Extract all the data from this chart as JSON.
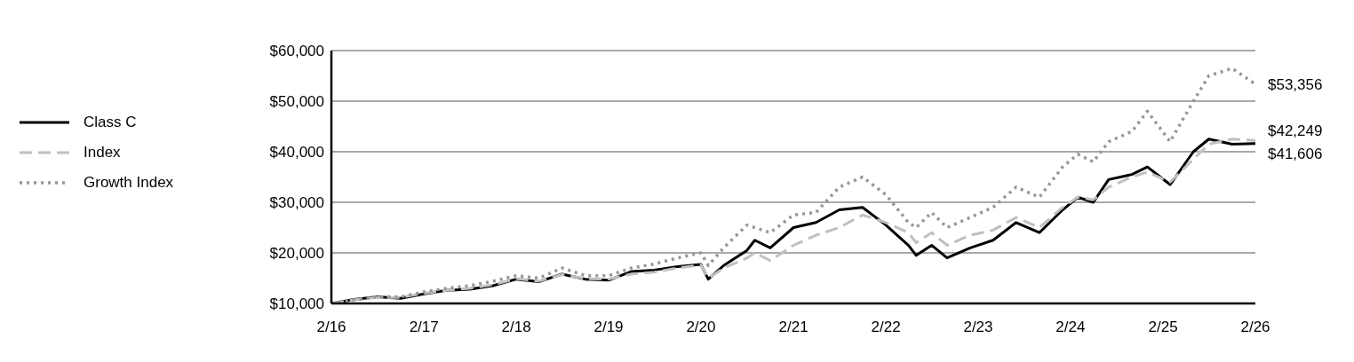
{
  "chart_data": {
    "type": "line",
    "x": [
      "2016-02",
      "2016-05",
      "2016-08",
      "2016-11",
      "2017-02",
      "2017-05",
      "2017-08",
      "2017-11",
      "2018-02",
      "2018-05",
      "2018-08",
      "2018-11",
      "2019-02",
      "2019-05",
      "2019-08",
      "2019-11",
      "2020-02",
      "2020-03",
      "2020-05",
      "2020-08",
      "2020-09",
      "2020-11",
      "2021-02",
      "2021-05",
      "2021-08",
      "2021-11",
      "2022-02",
      "2022-05",
      "2022-06",
      "2022-08",
      "2022-10",
      "2023-01",
      "2023-04",
      "2023-07",
      "2023-10",
      "2024-01",
      "2024-03",
      "2024-05",
      "2024-07",
      "2024-10",
      "2024-12",
      "2025-03",
      "2025-06",
      "2025-08",
      "2025-11",
      "2026-02"
    ],
    "series": [
      {
        "name": "Class C",
        "color": "#000000",
        "line_style": "solid",
        "values": [
          10000,
          10800,
          11300,
          11000,
          11900,
          12600,
          12800,
          13500,
          14800,
          14300,
          15800,
          14800,
          14600,
          16300,
          16600,
          17300,
          17700,
          14800,
          17500,
          20500,
          22500,
          21000,
          25000,
          26000,
          28500,
          29000,
          25500,
          21500,
          19500,
          21500,
          19000,
          21000,
          22500,
          26000,
          24000,
          28500,
          31000,
          30000,
          34500,
          35500,
          37000,
          33500,
          40000,
          42500,
          41500,
          41606
        ],
        "value_labels": [
          null,
          null,
          null,
          null,
          null,
          null,
          null,
          null,
          null,
          null,
          null,
          null,
          null,
          null,
          null,
          null,
          null,
          null,
          null,
          null,
          null,
          null,
          null,
          null,
          null,
          null,
          null,
          null,
          null,
          null,
          null,
          null,
          null,
          null,
          null,
          null,
          null,
          null,
          null,
          null,
          null,
          null,
          null,
          null,
          null,
          "$41,606"
        ]
      },
      {
        "name": "Index",
        "color": "#c0c0c0",
        "line_style": "dashed",
        "values": [
          10000,
          10700,
          11200,
          11200,
          12000,
          12600,
          13000,
          13700,
          14900,
          14400,
          15700,
          14900,
          14800,
          15800,
          16200,
          17000,
          17600,
          15000,
          17000,
          19000,
          20000,
          18500,
          21500,
          23500,
          25000,
          27500,
          26000,
          24000,
          22000,
          24000,
          21500,
          23500,
          24500,
          27000,
          25000,
          29000,
          31000,
          30500,
          33000,
          35000,
          36000,
          34000,
          38500,
          41500,
          42500,
          42249
        ],
        "value_labels": [
          null,
          null,
          null,
          null,
          null,
          null,
          null,
          null,
          null,
          null,
          null,
          null,
          null,
          null,
          null,
          null,
          null,
          null,
          null,
          null,
          null,
          null,
          null,
          null,
          null,
          null,
          null,
          null,
          null,
          null,
          null,
          null,
          null,
          null,
          null,
          null,
          null,
          null,
          null,
          null,
          null,
          null,
          null,
          null,
          null,
          "$42,249"
        ]
      },
      {
        "name": "Growth Index",
        "color": "#969696",
        "line_style": "dotted",
        "values": [
          10000,
          10700,
          11300,
          11300,
          12300,
          13000,
          13500,
          14400,
          15500,
          15000,
          17000,
          15500,
          15500,
          17000,
          17800,
          19000,
          20000,
          17500,
          21000,
          25500,
          25000,
          24000,
          27500,
          28000,
          33000,
          35000,
          31500,
          26000,
          25000,
          28000,
          25000,
          27000,
          29000,
          33000,
          31000,
          37000,
          39500,
          38000,
          42000,
          44000,
          48000,
          42000,
          50000,
          55000,
          56500,
          53356
        ],
        "value_labels": [
          null,
          null,
          null,
          null,
          null,
          null,
          null,
          null,
          null,
          null,
          null,
          null,
          null,
          null,
          null,
          null,
          null,
          null,
          null,
          null,
          null,
          null,
          null,
          null,
          null,
          null,
          null,
          null,
          null,
          null,
          null,
          null,
          null,
          null,
          null,
          null,
          null,
          null,
          null,
          null,
          null,
          null,
          null,
          null,
          null,
          "$53,356"
        ]
      }
    ],
    "xlim": [
      "2016-02",
      "2026-02"
    ],
    "xticks": [
      {
        "value": "2016-02",
        "label": "2/16"
      },
      {
        "value": "2017-02",
        "label": "2/17"
      },
      {
        "value": "2018-02",
        "label": "2/18"
      },
      {
        "value": "2019-02",
        "label": "2/19"
      },
      {
        "value": "2020-02",
        "label": "2/20"
      },
      {
        "value": "2021-02",
        "label": "2/21"
      },
      {
        "value": "2022-02",
        "label": "2/22"
      },
      {
        "value": "2023-02",
        "label": "2/23"
      },
      {
        "value": "2024-02",
        "label": "2/24"
      },
      {
        "value": "2025-02",
        "label": "2/25"
      },
      {
        "value": "2026-02",
        "label": "2/26"
      }
    ],
    "ylim": [
      10000,
      60000
    ],
    "yticks": [
      {
        "value": 10000,
        "label": "$10,000"
      },
      {
        "value": 20000,
        "label": "$20,000"
      },
      {
        "value": 30000,
        "label": "$30,000"
      },
      {
        "value": 40000,
        "label": "$40,000"
      },
      {
        "value": 50000,
        "label": "$50,000"
      },
      {
        "value": 60000,
        "label": "$60,000"
      }
    ],
    "grid": "y",
    "legend": "left",
    "marker": "none"
  }
}
